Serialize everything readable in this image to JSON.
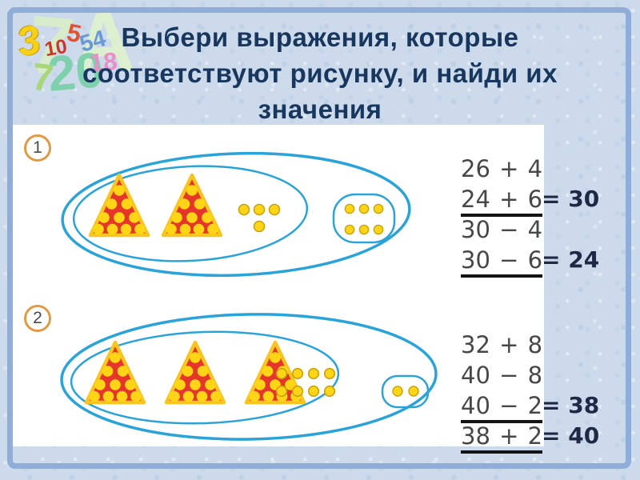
{
  "slide": {
    "title": "Выбери выражения, которые соответствуют рисунку, и найди их значения",
    "title_lines": [
      "Выбери выражения, которые",
      "соответствуют рисунку, и найди их",
      "значения"
    ],
    "colors": {
      "background": "#ccdaeb",
      "frame_border": "#8fadd9",
      "title_text": "#17375e",
      "panel": "#ffffff",
      "oval_stroke": "#2aa3d8",
      "triangle_fill": "#e6352b",
      "triangle_border": "#f7c51e",
      "dot_fill": "#ffd515",
      "dot_ring": "#c9a20b",
      "badge_ring": "#e09a44",
      "expression_text": "#474747",
      "underline": "#141414",
      "answer_text": "#1e2a45"
    },
    "decorative_numbers": [
      {
        "text": "7",
        "color": "#d6ecca",
        "cls": "d-big7"
      },
      {
        "text": "A",
        "color": "#dcf0d0",
        "cls": "d-bigA"
      },
      {
        "text": "20",
        "color": "#7fd0ad",
        "cls": "d-20"
      },
      {
        "text": "7",
        "color": "#a8d678",
        "cls": "d-7small"
      },
      {
        "text": "3",
        "color": "#f7d018",
        "cls": "d-3"
      },
      {
        "text": "10",
        "color": "#cd3526",
        "cls": "d-10"
      },
      {
        "text": "5",
        "color": "#e25430",
        "cls": "d-5"
      },
      {
        "text": "54",
        "color": "#6a9ad6",
        "cls": "d-54"
      },
      {
        "text": "18",
        "color": "#ea8ec6",
        "cls": "d-18"
      }
    ]
  },
  "problems": [
    {
      "number": "1",
      "figure": {
        "triangles": 2,
        "dots_per_triangle": 10,
        "loose_dots_in_inner_oval": 4,
        "dots_in_side_oval": 6,
        "inner_total": 24,
        "overall_total": 30
      },
      "expressions": [
        {
          "text": "26 + 4",
          "underlined": false,
          "answer": ""
        },
        {
          "text": "24 + 6",
          "underlined": true,
          "answer": "= 30"
        },
        {
          "text": "30 − 4",
          "underlined": false,
          "answer": ""
        },
        {
          "text": "30 − 6",
          "underlined": true,
          "answer": "= 24"
        }
      ]
    },
    {
      "number": "2",
      "figure": {
        "triangles": 3,
        "dots_per_triangle": 10,
        "loose_dots_in_inner_oval": 8,
        "dots_in_side_oval": 2,
        "inner_total": 38,
        "overall_total": 40
      },
      "expressions": [
        {
          "text": "32 + 8",
          "underlined": false,
          "answer": ""
        },
        {
          "text": "40 − 8",
          "underlined": false,
          "answer": ""
        },
        {
          "text": "40 − 2",
          "underlined": true,
          "answer": "= 38"
        },
        {
          "text": "38 + 2",
          "underlined": true,
          "answer": "= 40"
        }
      ]
    }
  ]
}
